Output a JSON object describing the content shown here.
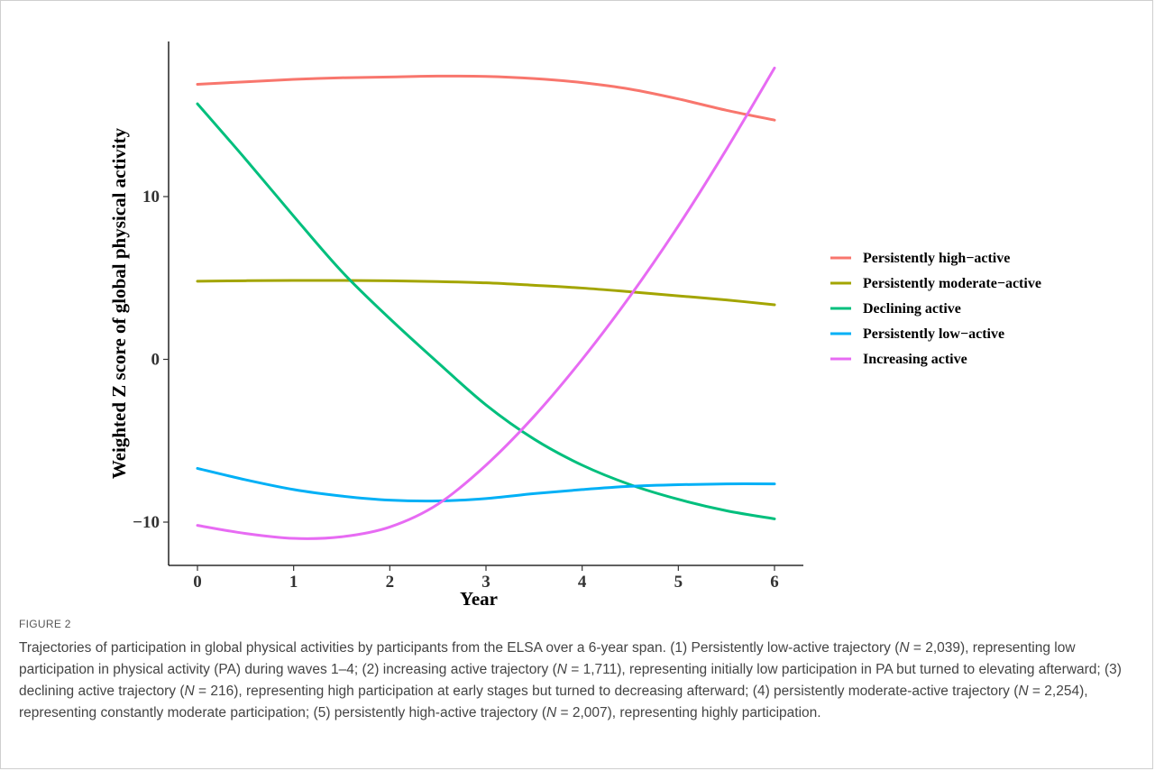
{
  "chart_data": {
    "type": "line",
    "xlabel": "Year",
    "ylabel": "Weighted Z score of global physical activity",
    "xlim": [
      -0.3,
      6.35
    ],
    "ylim": [
      -12.5,
      19.5
    ],
    "x_ticks": [
      0,
      1,
      2,
      3,
      4,
      5,
      6
    ],
    "y_ticks": [
      -10,
      0,
      10
    ],
    "y_tick_labels": [
      "−10",
      "0",
      "10"
    ],
    "grid": false,
    "legend_position": "right",
    "series": [
      {
        "name": "Persistently high−active",
        "color": "#F8766D",
        "x": [
          0,
          0.5,
          1,
          1.5,
          2,
          2.5,
          3,
          3.5,
          4,
          4.5,
          5,
          5.5,
          6
        ],
        "y": [
          16.9,
          17.05,
          17.2,
          17.3,
          17.35,
          17.4,
          17.38,
          17.25,
          17.0,
          16.6,
          16.0,
          15.3,
          14.7
        ]
      },
      {
        "name": "Persistently moderate−active",
        "color": "#A3A500",
        "x": [
          0,
          0.5,
          1,
          1.5,
          2,
          2.5,
          3,
          3.5,
          4,
          4.5,
          5,
          5.5,
          6
        ],
        "y": [
          4.8,
          4.83,
          4.85,
          4.85,
          4.83,
          4.78,
          4.7,
          4.55,
          4.38,
          4.15,
          3.9,
          3.65,
          3.35
        ]
      },
      {
        "name": "Declining active",
        "color": "#00BF7D",
        "x": [
          0,
          0.5,
          1,
          1.5,
          2,
          2.5,
          3,
          3.5,
          4,
          4.5,
          5,
          5.5,
          6
        ],
        "y": [
          15.7,
          12.3,
          8.8,
          5.4,
          2.5,
          -0.2,
          -2.8,
          -4.9,
          -6.5,
          -7.7,
          -8.6,
          -9.3,
          -9.8
        ]
      },
      {
        "name": "Persistently low−active",
        "color": "#00B0F6",
        "x": [
          0,
          0.5,
          1,
          1.5,
          2,
          2.5,
          3,
          3.5,
          4,
          4.5,
          5,
          5.5,
          6
        ],
        "y": [
          -6.7,
          -7.4,
          -8.0,
          -8.4,
          -8.65,
          -8.7,
          -8.55,
          -8.25,
          -8.0,
          -7.8,
          -7.7,
          -7.65,
          -7.65
        ]
      },
      {
        "name": "Increasing active",
        "color": "#E76BF3",
        "x": [
          0,
          0.5,
          1,
          1.5,
          2,
          2.5,
          3,
          3.5,
          4,
          4.5,
          5,
          5.5,
          6
        ],
        "y": [
          -10.2,
          -10.7,
          -11.0,
          -10.9,
          -10.3,
          -8.9,
          -6.5,
          -3.5,
          0.0,
          3.9,
          8.2,
          12.9,
          17.9
        ]
      }
    ]
  },
  "caption": {
    "label": "FIGURE 2",
    "text": "Trajectories of participation in global physical activities by participants from the ELSA over a 6-year span. (1) Persistently low-active trajectory (N = 2,039), representing low participation in physical activity (PA) during waves 1–4; (2) increasing active trajectory (N = 1,711), representing initially low participation in PA but turned to elevating afterward; (3) declining active trajectory (N = 216), representing high participation at early stages but turned to decreasing afterward; (4) persistently moderate-active trajectory (N = 2,254), representing constantly moderate participation; (5) persistently high-active trajectory (N = 2,007), representing highly participation."
  }
}
